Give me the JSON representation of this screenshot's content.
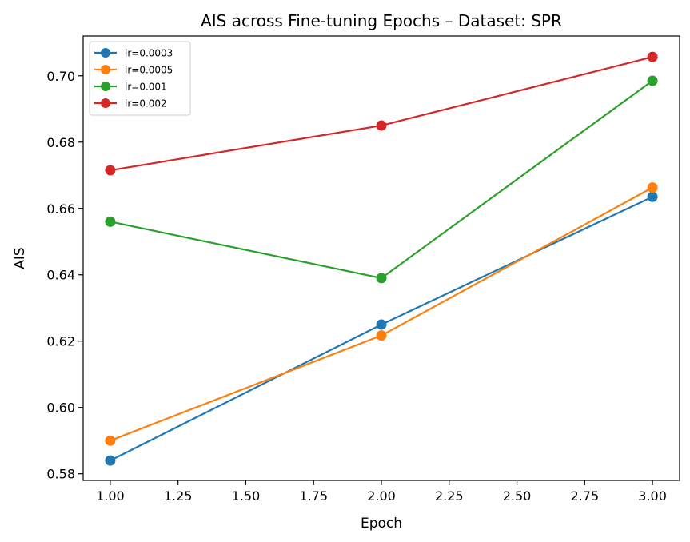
{
  "chart_data": {
    "type": "line",
    "title": "AIS across Fine-tuning Epochs – Dataset: SPR",
    "xlabel": "Epoch",
    "ylabel": "AIS",
    "x": [
      1.0,
      2.0,
      3.0
    ],
    "xlim": [
      0.9,
      3.1
    ],
    "ylim": [
      0.578,
      0.712
    ],
    "xticks": [
      1.0,
      1.25,
      1.5,
      1.75,
      2.0,
      2.25,
      2.5,
      2.75,
      3.0
    ],
    "xtick_labels": [
      "1.00",
      "1.25",
      "1.50",
      "1.75",
      "2.00",
      "2.25",
      "2.50",
      "2.75",
      "3.00"
    ],
    "yticks": [
      0.58,
      0.6,
      0.62,
      0.64,
      0.66,
      0.68,
      0.7
    ],
    "ytick_labels": [
      "0.58",
      "0.60",
      "0.62",
      "0.64",
      "0.66",
      "0.68",
      "0.70"
    ],
    "grid": false,
    "legend_position": "top-left",
    "series": [
      {
        "name": "lr=0.0003",
        "color": "#1f77b4",
        "values": [
          0.584,
          0.625,
          0.6635
        ]
      },
      {
        "name": "lr=0.0005",
        "color": "#ff7f0e",
        "values": [
          0.59,
          0.6217,
          0.6663
        ]
      },
      {
        "name": "lr=0.001",
        "color": "#2ca02c",
        "values": [
          0.656,
          0.639,
          0.6985
        ]
      },
      {
        "name": "lr=0.002",
        "color": "#d62728",
        "values": [
          0.6715,
          0.685,
          0.7057
        ]
      }
    ]
  }
}
